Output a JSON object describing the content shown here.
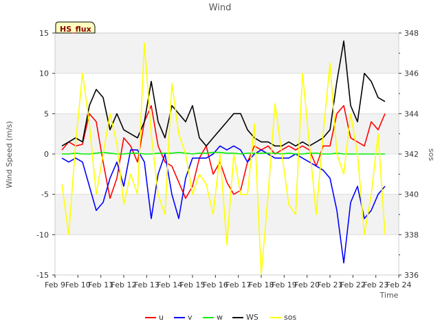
{
  "chart_data": {
    "type": "line",
    "title": "Wind",
    "xlabel": "Time",
    "ylabel": "Wind Speed (m/s)",
    "y2label": "sos",
    "badge": "HS_flux",
    "xlim": [
      0,
      15
    ],
    "ylim": [
      -15,
      15
    ],
    "y2lim": [
      336,
      348
    ],
    "x_ticks": [
      0,
      1,
      2,
      3,
      4,
      5,
      6,
      7,
      8,
      9,
      10,
      11,
      12,
      13,
      14,
      15
    ],
    "x_tick_labels": [
      "Feb 9",
      "Feb 10",
      "Feb 11",
      "Feb 12",
      "Feb 13",
      "Feb 14",
      "Feb 15",
      "Feb 16",
      "Feb 17",
      "Feb 18",
      "Feb 19",
      "Feb 20",
      "Feb 21",
      "Feb 22",
      "Feb 23",
      "Feb 24"
    ],
    "y_ticks": [
      -15,
      -10,
      -5,
      0,
      5,
      10,
      15
    ],
    "y2_ticks": [
      336,
      338,
      340,
      342,
      344,
      346,
      348
    ],
    "x": [
      0.3,
      0.6,
      0.9,
      1.2,
      1.5,
      1.8,
      2.1,
      2.4,
      2.7,
      3.0,
      3.3,
      3.6,
      3.9,
      4.2,
      4.5,
      4.8,
      5.1,
      5.4,
      5.7,
      6.0,
      6.3,
      6.6,
      6.9,
      7.2,
      7.5,
      7.8,
      8.1,
      8.4,
      8.7,
      9.0,
      9.3,
      9.6,
      9.9,
      10.2,
      10.5,
      10.8,
      11.1,
      11.4,
      11.7,
      12.0,
      12.3,
      12.6,
      12.9,
      13.2,
      13.5,
      13.8,
      14.1,
      14.4
    ],
    "series": [
      {
        "name": "u",
        "color": "#ff0000",
        "axis": "left",
        "values": [
          0.5,
          1.5,
          1.0,
          1.2,
          5.0,
          4.0,
          -1.0,
          -5.5,
          -3.0,
          2.0,
          1.0,
          -1.0,
          4.0,
          6.0,
          1.0,
          -1.0,
          -1.5,
          -3.5,
          -5.5,
          -4.0,
          -0.5,
          1.0,
          -2.5,
          -1.0,
          -3.5,
          -5.0,
          -4.5,
          -1.0,
          1.0,
          0.5,
          1.0,
          0.0,
          0.5,
          1.0,
          0.5,
          1.0,
          0.5,
          -1.5,
          1.0,
          1.0,
          5.0,
          6.0,
          2.0,
          1.5,
          1.0,
          4.0,
          3.0,
          5.0
        ]
      },
      {
        "name": "v",
        "color": "#0000ff",
        "axis": "left",
        "values": [
          -0.5,
          -1.0,
          -0.5,
          -1.0,
          -4.0,
          -7.0,
          -6.0,
          -3.0,
          -1.0,
          -4.0,
          0.5,
          0.5,
          -1.0,
          -8.0,
          -2.5,
          0.0,
          -5.0,
          -8.0,
          -3.0,
          -0.5,
          -0.5,
          -0.5,
          0.0,
          1.0,
          0.5,
          1.0,
          0.5,
          -1.0,
          0.0,
          0.5,
          0.0,
          -0.5,
          -0.5,
          -0.5,
          0.0,
          -0.5,
          -1.0,
          -1.5,
          -2.0,
          -3.0,
          -7.0,
          -13.5,
          -6.0,
          -4.0,
          -8.0,
          -7.0,
          -5.0,
          -4.0
        ]
      },
      {
        "name": "w",
        "color": "#00ee00",
        "axis": "left",
        "values": [
          0.0,
          0.0,
          0.1,
          0.0,
          0.0,
          0.1,
          0.2,
          0.1,
          0.0,
          0.0,
          0.1,
          0.1,
          0.0,
          0.0,
          0.1,
          0.1,
          0.1,
          0.2,
          0.1,
          0.0,
          0.1,
          0.1,
          0.2,
          0.2,
          0.1,
          0.1,
          0.0,
          0.1,
          0.1,
          0.1,
          0.1,
          0.1,
          0.0,
          0.1,
          0.0,
          0.0,
          0.1,
          0.1,
          0.0,
          0.0,
          0.1,
          0.0,
          0.0,
          0.0,
          0.0,
          0.0,
          0.0,
          0.0
        ]
      },
      {
        "name": "WS",
        "color": "#000000",
        "axis": "left",
        "values": [
          1.0,
          1.5,
          2.0,
          1.5,
          6.0,
          8.0,
          7.0,
          3.0,
          5.0,
          3.0,
          2.5,
          2.0,
          4.0,
          9.0,
          4.0,
          2.0,
          6.0,
          5.0,
          4.0,
          6.0,
          2.0,
          1.0,
          2.0,
          3.0,
          4.0,
          5.0,
          5.0,
          3.0,
          2.0,
          1.5,
          1.5,
          1.0,
          1.0,
          1.5,
          1.0,
          1.5,
          1.0,
          1.5,
          2.0,
          3.0,
          9.0,
          14.0,
          6.0,
          4.0,
          10.0,
          9.0,
          7.0,
          6.5
        ]
      },
      {
        "name": "sos",
        "color": "#ffff00",
        "axis": "right",
        "values": [
          340.5,
          338.0,
          342.5,
          346.0,
          343.5,
          340.0,
          342.0,
          344.0,
          342.5,
          339.5,
          341.0,
          340.0,
          347.5,
          343.0,
          340.0,
          339.0,
          345.5,
          343.0,
          342.0,
          340.0,
          341.0,
          340.5,
          339.0,
          342.0,
          337.5,
          342.0,
          340.0,
          340.0,
          343.5,
          336.0,
          340.0,
          344.5,
          342.0,
          339.5,
          339.0,
          346.0,
          342.5,
          339.0,
          343.0,
          346.5,
          342.0,
          341.0,
          344.0,
          342.0,
          338.0,
          340.0,
          343.0,
          338.0
        ]
      }
    ]
  }
}
